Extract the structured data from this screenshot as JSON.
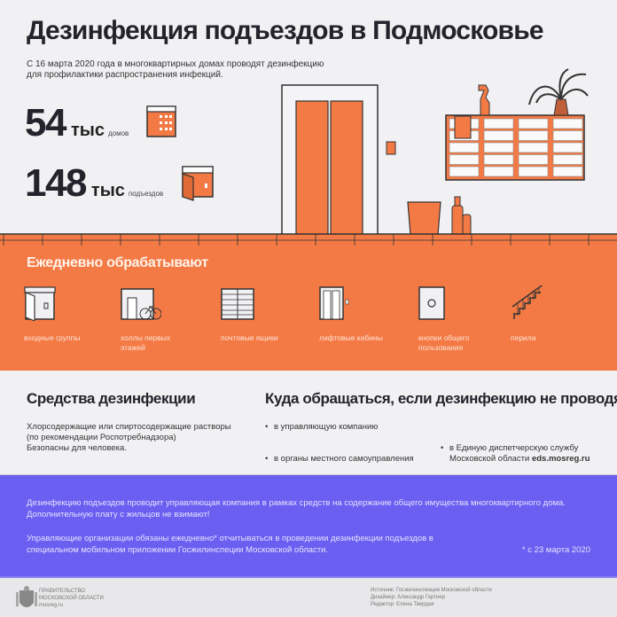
{
  "title": "Дезинфекция подъездов в Подмосковье",
  "subtitle": [
    "С 16 марта 2020 года в многоквартирных домах проводят дезинфекцию",
    "для профилактики распространения инфекций."
  ],
  "stats": [
    {
      "value": "54",
      "unit": "тыс",
      "label": "домов",
      "icon": "apartment-building-icon"
    },
    {
      "value": "148",
      "unit": "тыс",
      "label": "подъездов",
      "icon": "entrance-door-icon"
    }
  ],
  "colors": {
    "orange": "#f47a45",
    "purple": "#6a5ff0",
    "background": "#f1f1f4",
    "dark": "#23232b"
  },
  "daily": {
    "title": "Ежедневно обрабатывают",
    "items": [
      {
        "label": "входные группы",
        "icon": "entrance-door-icon"
      },
      {
        "label": "холлы первых этажей",
        "icon": "hall-bicycle-icon"
      },
      {
        "label": "почтовые ящики",
        "icon": "mailboxes-icon"
      },
      {
        "label": "лифтовые кабины",
        "icon": "elevator-icon"
      },
      {
        "label": "кнопки общего пользования",
        "icon": "button-panel-icon"
      },
      {
        "label": "перила",
        "icon": "stair-railing-icon"
      }
    ]
  },
  "means": {
    "title": "Средства дезинфекции",
    "text1": "Хлорсодержащие или спиртосодержащие растворы (по рекомендации Роспотребнадзора)",
    "text2": "Безопасны для человека."
  },
  "contact": {
    "title": "Куда обращаться, если дезинфекцию не проводят",
    "items": [
      "в управляющую компанию",
      "в органы местного самоуправления"
    ],
    "item3_text": "в Единую диспетчерскую службу Московской области",
    "item3_link": "eds.mosreg.ru"
  },
  "notice": {
    "p1": "Дезинфекцию подъездов проводит управляющая компания в рамках средств на содержание общего имущества многоквартирного дома. Дополнительную плату с жильцов не взимают!",
    "p2": "Управляющие организации обязаны ежедневно* отчитываться в проведении дезинфекции подъездов в специальном мобильном приложении Госжилинспеции Московской области.",
    "footnote": "* с 23 марта 2020"
  },
  "footer": {
    "org": [
      "ПРАВИТЕЛЬСТВО",
      "МОСКОВСКОЙ ОБЛАСТИ",
      "mosreg.ru"
    ],
    "source": "Источник: Госжилинспекция Московской области",
    "designer": "Дизайнер: Александр Гертнер",
    "editor": "Редактор: Елена Твердая"
  }
}
